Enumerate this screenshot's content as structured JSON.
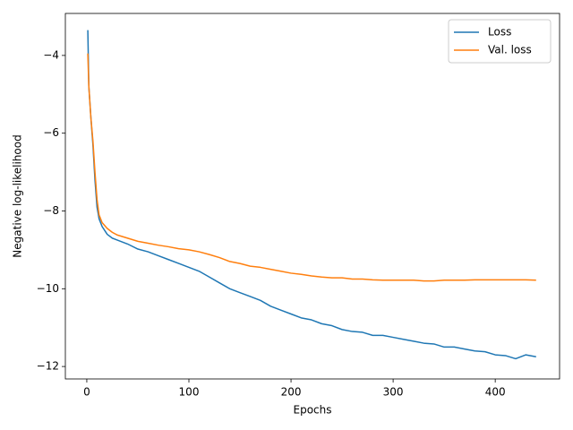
{
  "chart_data": {
    "type": "line",
    "x_label": "Epochs",
    "y_label": "Negative log-likelihood",
    "x": [
      1,
      2,
      4,
      6,
      8,
      10,
      12,
      15,
      20,
      25,
      30,
      40,
      50,
      60,
      70,
      80,
      90,
      100,
      110,
      120,
      130,
      140,
      150,
      160,
      170,
      180,
      190,
      200,
      210,
      220,
      230,
      240,
      250,
      260,
      270,
      280,
      290,
      300,
      310,
      320,
      330,
      340,
      350,
      360,
      370,
      380,
      390,
      400,
      410,
      420,
      430,
      440
    ],
    "series": [
      {
        "name": "Loss",
        "color": "#1f77b4",
        "values": [
          -3.35,
          -4.8,
          -5.6,
          -6.3,
          -7.2,
          -7.9,
          -8.2,
          -8.4,
          -8.6,
          -8.7,
          -8.75,
          -8.85,
          -8.98,
          -9.05,
          -9.15,
          -9.25,
          -9.35,
          -9.45,
          -9.55,
          -9.7,
          -9.85,
          -10.0,
          -10.1,
          -10.2,
          -10.3,
          -10.45,
          -10.55,
          -10.65,
          -10.75,
          -10.8,
          -10.9,
          -10.95,
          -11.05,
          -11.1,
          -11.12,
          -11.2,
          -11.2,
          -11.25,
          -11.3,
          -11.35,
          -11.4,
          -11.42,
          -11.5,
          -11.5,
          -11.55,
          -11.6,
          -11.62,
          -11.7,
          -11.72,
          -11.8,
          -11.7,
          -11.75
        ]
      },
      {
        "name": "Val. loss",
        "color": "#ff7f0e",
        "values": [
          -3.95,
          -4.8,
          -5.6,
          -6.2,
          -7.0,
          -7.7,
          -8.1,
          -8.3,
          -8.45,
          -8.55,
          -8.62,
          -8.7,
          -8.78,
          -8.83,
          -8.88,
          -8.92,
          -8.97,
          -9.0,
          -9.05,
          -9.12,
          -9.2,
          -9.3,
          -9.35,
          -9.42,
          -9.45,
          -9.5,
          -9.55,
          -9.6,
          -9.63,
          -9.67,
          -9.7,
          -9.72,
          -9.72,
          -9.75,
          -9.75,
          -9.77,
          -9.78,
          -9.78,
          -9.78,
          -9.78,
          -9.8,
          -9.8,
          -9.78,
          -9.78,
          -9.78,
          -9.77,
          -9.77,
          -9.77,
          -9.77,
          -9.77,
          -9.77,
          -9.78
        ]
      }
    ],
    "xlim": [
      -21,
      463
    ],
    "ylim": [
      -12.32,
      -2.92
    ],
    "xticks": [
      0,
      100,
      200,
      300,
      400
    ],
    "yticks": [
      {
        "value": -12,
        "label": "−12"
      },
      {
        "value": -10,
        "label": "−10"
      },
      {
        "value": -8,
        "label": "−8"
      },
      {
        "value": -6,
        "label": "−6"
      },
      {
        "value": -4,
        "label": "−4"
      }
    ],
    "legend": "upper right"
  }
}
